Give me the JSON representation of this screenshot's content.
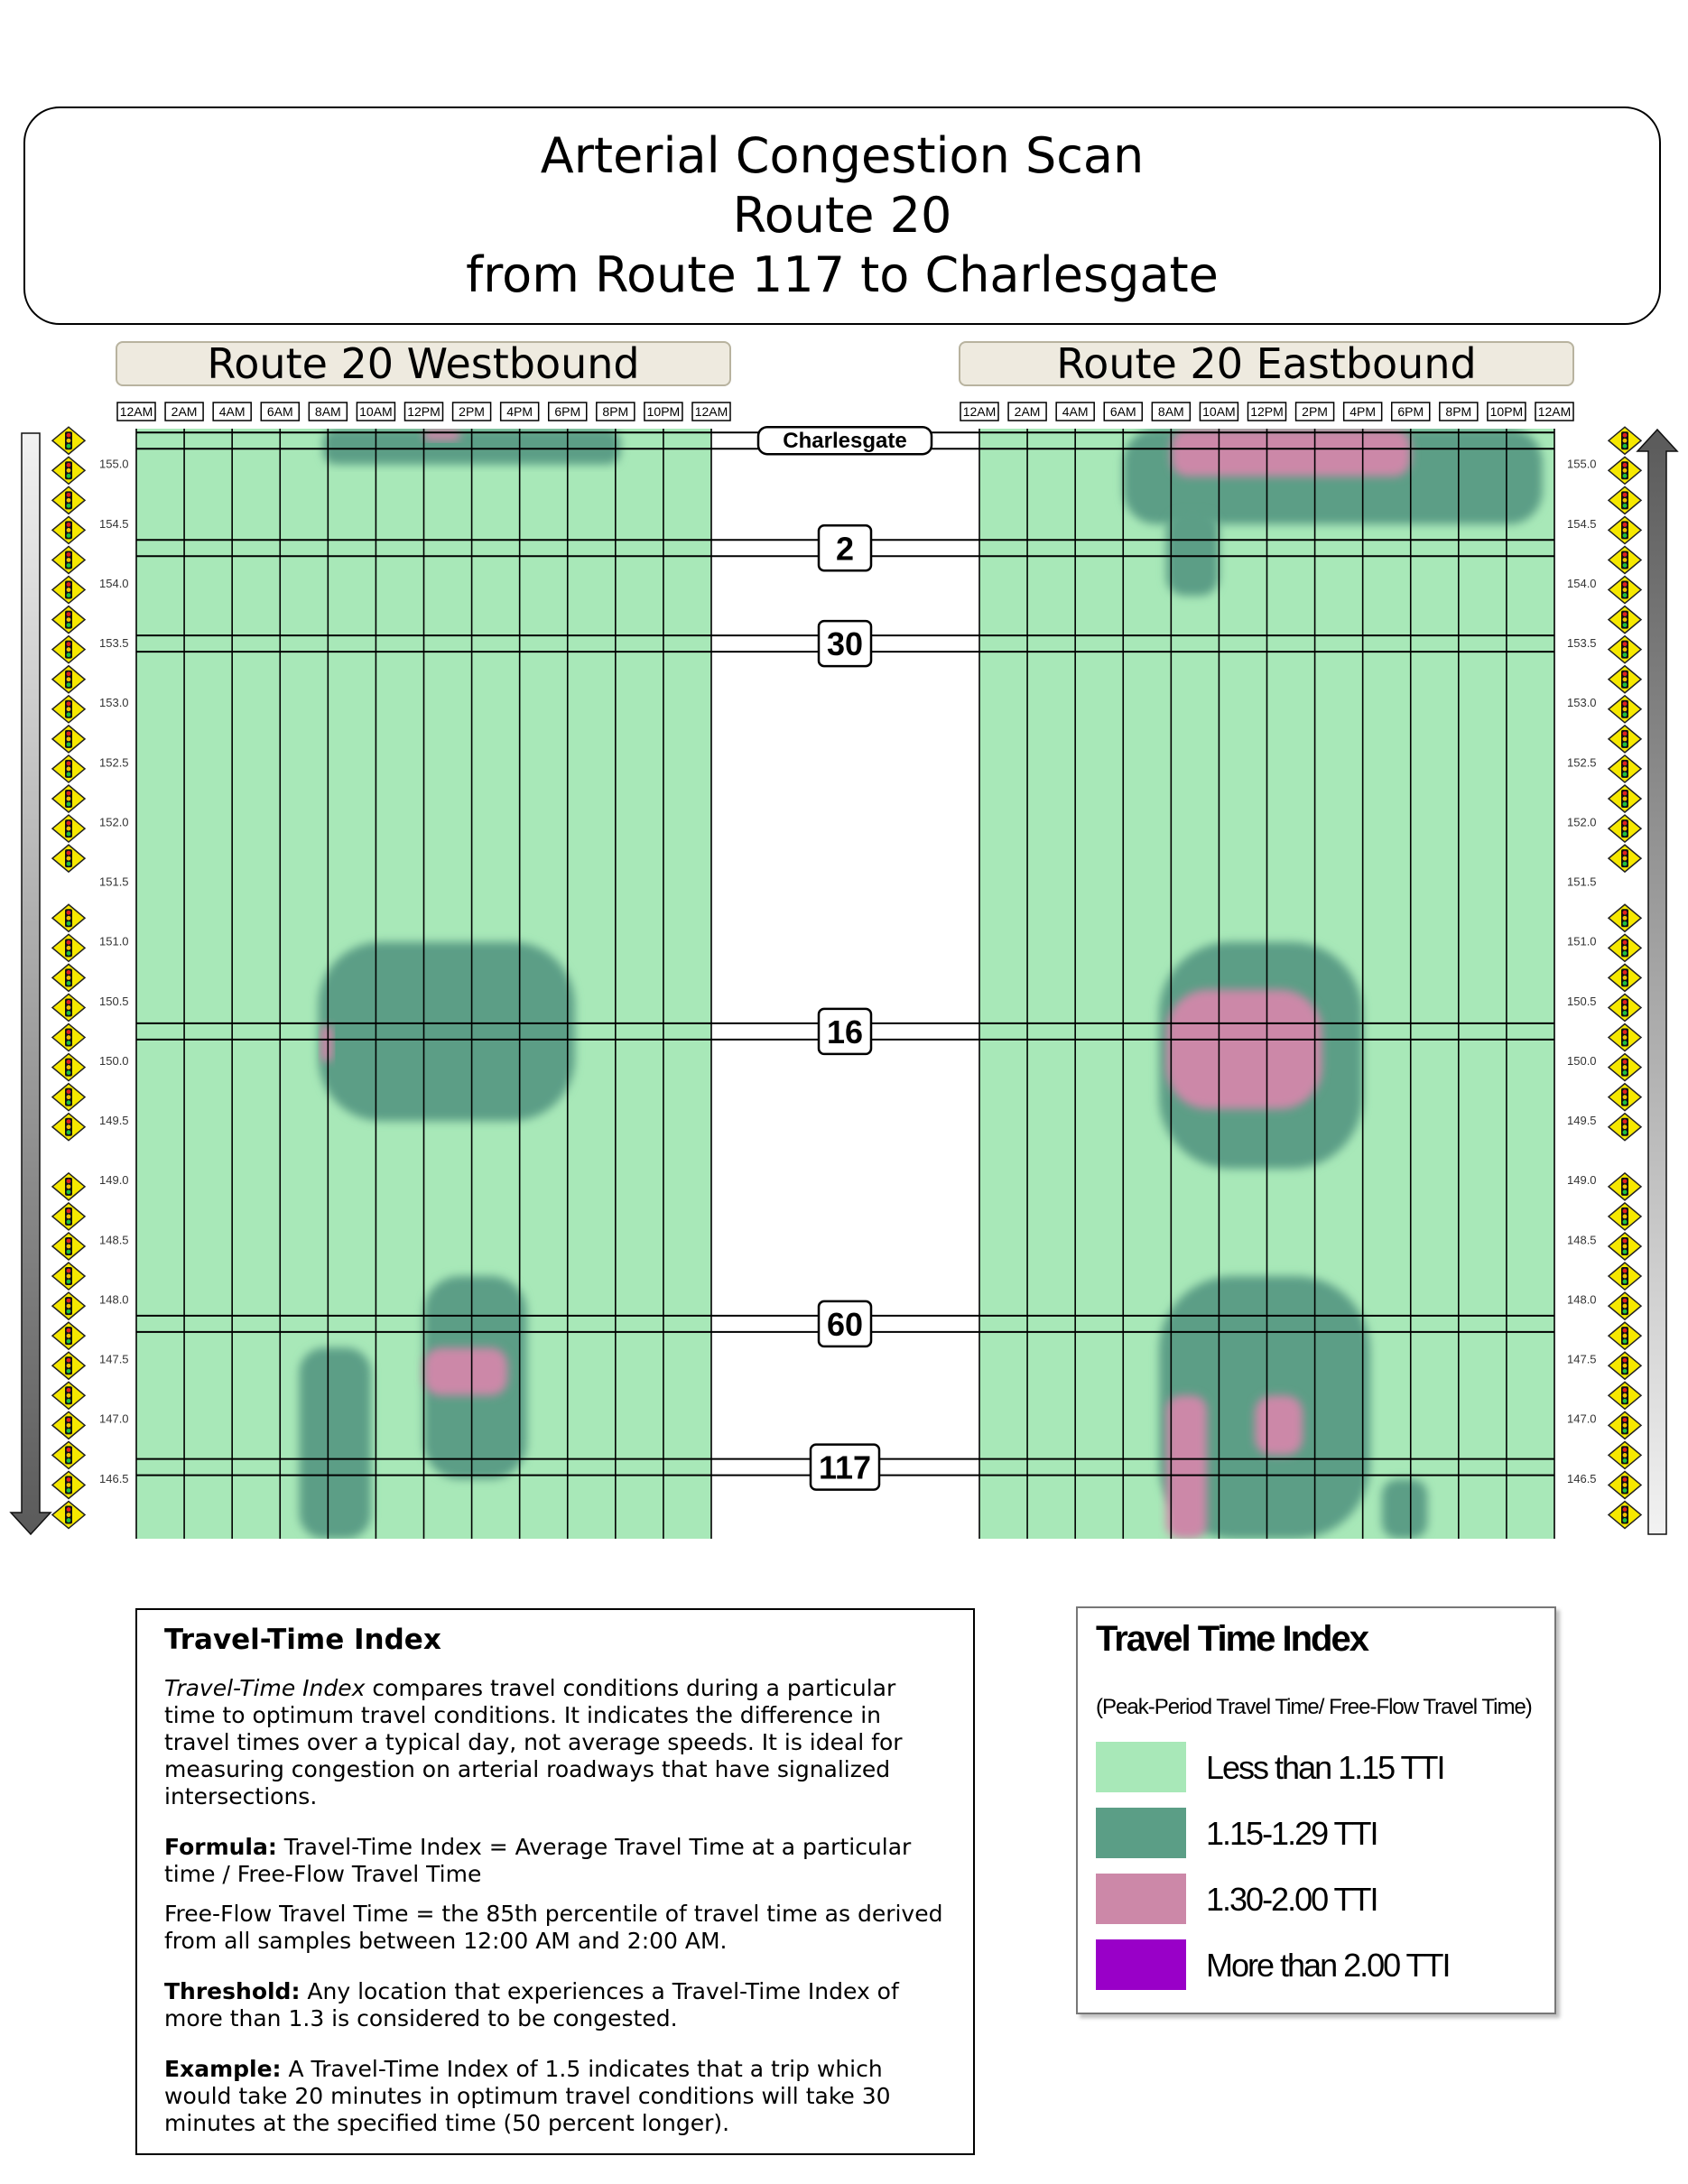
{
  "title": {
    "line1": "Arterial Congestion Scan",
    "line2": "Route 20",
    "line3": "from Route 117 to Charlesgate"
  },
  "chart_data": {
    "type": "heatmap",
    "panels": [
      {
        "id": "westbound",
        "title": "Route 20 Westbound",
        "direction": "down"
      },
      {
        "id": "eastbound",
        "title": "Route 20 Eastbound",
        "direction": "up"
      }
    ],
    "x_ticks": [
      "12AM",
      "2AM",
      "4AM",
      "6AM",
      "8AM",
      "10AM",
      "12PM",
      "2PM",
      "4PM",
      "6PM",
      "8PM",
      "10PM",
      "12AM"
    ],
    "x_range_hours": [
      0,
      24
    ],
    "y_ticks": [
      "155.0",
      "154.5",
      "154.0",
      "153.5",
      "153.0",
      "152.5",
      "152.0",
      "151.5",
      "151.0",
      "150.5",
      "150.0",
      "149.5",
      "149.0",
      "148.5",
      "148.0",
      "147.5",
      "147.0",
      "146.5"
    ],
    "y_range_mile": [
      146.0,
      155.3
    ],
    "crossroads": [
      {
        "label": "Charlesgate",
        "mile": 155.2
      },
      {
        "label": "2",
        "mile": 154.3
      },
      {
        "label": "30",
        "mile": 153.5
      },
      {
        "label": "16",
        "mile": 150.25
      },
      {
        "label": "60",
        "mile": 147.8
      },
      {
        "label": "117",
        "mile": 146.6
      }
    ],
    "signal_miles": [
      155.2,
      154.95,
      154.7,
      154.45,
      154.2,
      153.95,
      153.7,
      153.45,
      153.2,
      152.95,
      152.7,
      152.45,
      152.2,
      151.95,
      151.7,
      151.2,
      150.95,
      150.7,
      150.45,
      150.2,
      149.95,
      149.7,
      149.45,
      148.95,
      148.7,
      148.45,
      148.2,
      147.95,
      147.7,
      147.45,
      147.2,
      146.95,
      146.7,
      146.45,
      146.2
    ],
    "congestion_regions": [
      {
        "panel": "westbound",
        "level": "1.15-1.29",
        "hours": [
          7.8,
          20.2
        ],
        "miles": [
          155.0,
          155.3
        ]
      },
      {
        "panel": "westbound",
        "level": "1.30-2.00",
        "hours": [
          12.0,
          13.5
        ],
        "miles": [
          155.2,
          155.3
        ]
      },
      {
        "panel": "westbound",
        "level": "1.15-1.29",
        "hours": [
          7.6,
          18.3
        ],
        "miles": [
          149.5,
          151.0
        ]
      },
      {
        "panel": "westbound",
        "level": "1.30-2.00",
        "hours": [
          7.7,
          8.2
        ],
        "miles": [
          150.0,
          150.3
        ]
      },
      {
        "panel": "westbound",
        "level": "1.15-1.29",
        "hours": [
          12.0,
          16.3
        ],
        "miles": [
          146.5,
          148.2
        ]
      },
      {
        "panel": "westbound",
        "level": "1.30-2.00",
        "hours": [
          12.0,
          15.5
        ],
        "miles": [
          147.2,
          147.6
        ]
      },
      {
        "panel": "westbound",
        "level": "1.15-1.29",
        "hours": [
          6.8,
          9.8
        ],
        "miles": [
          146.0,
          147.6
        ]
      },
      {
        "panel": "eastbound",
        "level": "1.15-1.29",
        "hours": [
          6.0,
          23.5
        ],
        "miles": [
          154.5,
          155.3
        ]
      },
      {
        "panel": "eastbound",
        "level": "1.30-2.00",
        "hours": [
          8.0,
          18.0
        ],
        "miles": [
          154.9,
          155.3
        ]
      },
      {
        "panel": "eastbound",
        "level": "1.15-1.29",
        "hours": [
          7.8,
          10.0
        ],
        "miles": [
          153.9,
          154.6
        ]
      },
      {
        "panel": "eastbound",
        "level": "1.15-1.29",
        "hours": [
          7.5,
          16.0
        ],
        "miles": [
          149.1,
          151.0
        ]
      },
      {
        "panel": "eastbound",
        "level": "1.30-2.00",
        "hours": [
          7.8,
          14.3
        ],
        "miles": [
          149.6,
          150.6
        ]
      },
      {
        "panel": "eastbound",
        "level": "1.15-1.29",
        "hours": [
          7.5,
          16.3
        ],
        "miles": [
          146.0,
          148.2
        ]
      },
      {
        "panel": "eastbound",
        "level": "1.30-2.00",
        "hours": [
          7.8,
          9.5
        ],
        "miles": [
          146.0,
          147.2
        ]
      },
      {
        "panel": "eastbound",
        "level": "1.30-2.00",
        "hours": [
          11.5,
          13.5
        ],
        "miles": [
          146.7,
          147.2
        ]
      },
      {
        "panel": "eastbound",
        "level": "1.15-1.29",
        "hours": [
          16.8,
          18.7
        ],
        "miles": [
          146.0,
          146.5
        ]
      }
    ],
    "colors": {
      "free_flow": "#a8e8b8",
      "moderate": "#5b9e86",
      "congested": "#cc88a8",
      "severe": "#9900c8"
    }
  },
  "info": {
    "heading": "Travel-Time Index",
    "p1_em": "Travel-Time Index",
    "p1_rest": " compares travel conditions during a particular time to optimum travel conditions. It indicates the difference in travel times over a typical day, not average speeds. It is ideal for measuring congestion on arterial roadways that have signalized intersections.",
    "formula_label": "Formula:",
    "formula_text": " Travel-Time Index = Average Travel Time at a particular time / Free-Flow Travel Time",
    "freeflow_text": "Free-Flow Travel Time = the 85th percentile of travel time as derived from all samples between 12:00 AM and 2:00 AM.",
    "threshold_label": "Threshold:",
    "threshold_text": " Any location that experiences a Travel-Time Index of more than 1.3 is considered to be congested.",
    "example_label": "Example:",
    "example_text": " A Travel-Time Index of 1.5 indicates that a trip which would take 20 minutes in optimum travel conditions will take 30 minutes at the specified time (50 percent longer)."
  },
  "legend": {
    "title": "Travel Time Index",
    "subtitle": "(Peak-Period Travel Time/ Free-Flow Travel Time)",
    "items": [
      {
        "label": "Less than 1.15 TTI",
        "color": "#a8e8b8"
      },
      {
        "label": "1.15-1.29 TTI",
        "color": "#5b9e86"
      },
      {
        "label": "1.30-2.00 TTI",
        "color": "#cc88a8"
      },
      {
        "label": "More than 2.00 TTI",
        "color": "#9900c8"
      }
    ]
  }
}
